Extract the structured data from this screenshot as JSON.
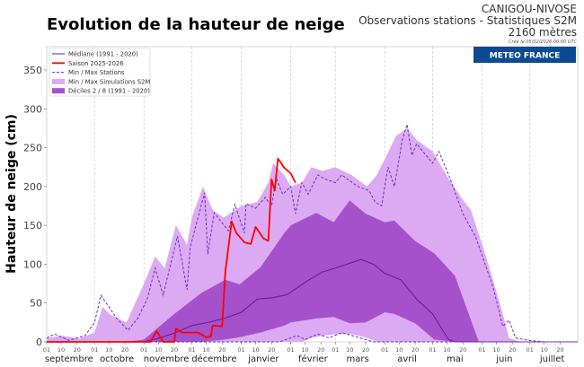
{
  "header": {
    "title": "Evolution de la hauteur de neige",
    "station": "CANIGOU-NIVOSE",
    "subtitle": "Observations stations - Statistiques S2M",
    "altitude": "2160 mètres",
    "created": "Créé le 05/02/2026 00:00 UTC",
    "logo_text": "METEO FRANCE"
  },
  "chart_data": {
    "type": "area",
    "title": "Evolution de la hauteur de neige",
    "ylabel": "Hauteur de neige (cm)",
    "xlabel": "",
    "ylim": [
      0,
      380
    ],
    "xlim": [
      "2025-09-01",
      "2026-07-31"
    ],
    "yticks": [
      "0",
      "50",
      "100",
      "150",
      "200",
      "250",
      "300",
      "350"
    ],
    "day_ticks": [
      "01",
      "10",
      "20"
    ],
    "months": [
      "septembre",
      "octobre",
      "novembre",
      "décembre",
      "janvier",
      "février",
      "mars",
      "avril",
      "mai",
      "juin",
      "juillet"
    ],
    "grid": "vertical dashed at month starts",
    "legend_position": "top-left",
    "colors": {
      "median": "#6a1f92",
      "season": "#ff0000",
      "stations": "#6a2ec4",
      "sim_band": "#dcaaf2",
      "decile_band": "#a651cc",
      "logo_bg": "#0b4a91"
    },
    "legend": [
      {
        "key": "median",
        "label": "Médiane (1991 - 2020)",
        "style": "line"
      },
      {
        "key": "season",
        "label": "Saison 2025-2026",
        "style": "thick-line"
      },
      {
        "key": "stations",
        "label": "Min / Max Stations",
        "style": "dashed"
      },
      {
        "key": "sim_band",
        "label": "Min / Max Simulations S2M",
        "style": "fill"
      },
      {
        "key": "decile_band",
        "label": "Déciles 2 / 8  (1991 - 2020)",
        "style": "fill"
      }
    ],
    "sim_minmax": [
      [
        "2025-09-01",
        0,
        5
      ],
      [
        "2025-09-11",
        0,
        8
      ],
      [
        "2025-09-21",
        0,
        4
      ],
      [
        "2025-10-01",
        0,
        12
      ],
      [
        "2025-10-06",
        0,
        45
      ],
      [
        "2025-10-11",
        0,
        35
      ],
      [
        "2025-10-21",
        0,
        25
      ],
      [
        "2025-11-01",
        0,
        75
      ],
      [
        "2025-11-08",
        0,
        110
      ],
      [
        "2025-11-14",
        0,
        95
      ],
      [
        "2025-11-21",
        0,
        150
      ],
      [
        "2025-11-28",
        0,
        125
      ],
      [
        "2025-12-01",
        0,
        160
      ],
      [
        "2025-12-08",
        0,
        200
      ],
      [
        "2025-12-14",
        0,
        170
      ],
      [
        "2025-12-21",
        0,
        160
      ],
      [
        "2026-01-01",
        0,
        175
      ],
      [
        "2026-01-11",
        0,
        180
      ],
      [
        "2026-01-18",
        0,
        205
      ],
      [
        "2026-01-21",
        0,
        230
      ],
      [
        "2026-01-28",
        0,
        215
      ],
      [
        "2026-02-01",
        0,
        200
      ],
      [
        "2026-02-08",
        0,
        205
      ],
      [
        "2026-02-14",
        5,
        225
      ],
      [
        "2026-02-21",
        8,
        220
      ],
      [
        "2026-03-01",
        10,
        225
      ],
      [
        "2026-03-11",
        10,
        215
      ],
      [
        "2026-03-21",
        5,
        200
      ],
      [
        "2026-03-27",
        0,
        215
      ],
      [
        "2026-04-01",
        0,
        235
      ],
      [
        "2026-04-08",
        0,
        265
      ],
      [
        "2026-04-15",
        0,
        275
      ],
      [
        "2026-04-21",
        0,
        260
      ],
      [
        "2026-05-01",
        0,
        245
      ],
      [
        "2026-05-11",
        0,
        210
      ],
      [
        "2026-05-21",
        0,
        180
      ],
      [
        "2026-05-25",
        0,
        170
      ],
      [
        "2026-06-03",
        0,
        113
      ],
      [
        "2026-06-12",
        0,
        51
      ],
      [
        "2026-06-18",
        0,
        5
      ],
      [
        "2026-06-25",
        0,
        0
      ],
      [
        "2026-07-31",
        0,
        0
      ]
    ],
    "deciles_2_8": [
      [
        "2025-09-01",
        0,
        0
      ],
      [
        "2025-10-21",
        0,
        0
      ],
      [
        "2025-11-01",
        0,
        3
      ],
      [
        "2025-11-20",
        0,
        36
      ],
      [
        "2025-12-07",
        0,
        63
      ],
      [
        "2025-12-22",
        3,
        80
      ],
      [
        "2025-12-31",
        6,
        74
      ],
      [
        "2026-01-13",
        12,
        96
      ],
      [
        "2026-01-28",
        21,
        140
      ],
      [
        "2026-02-01",
        25,
        150
      ],
      [
        "2026-02-17",
        30,
        166
      ],
      [
        "2026-02-28",
        32,
        154
      ],
      [
        "2026-03-10",
        24,
        182
      ],
      [
        "2026-03-20",
        25,
        165
      ],
      [
        "2026-04-01",
        38,
        154
      ],
      [
        "2026-04-07",
        36,
        156
      ],
      [
        "2026-04-20",
        24,
        130
      ],
      [
        "2026-05-02",
        3,
        114
      ],
      [
        "2026-05-15",
        0,
        85
      ],
      [
        "2026-05-30",
        0,
        0
      ],
      [
        "2026-07-31",
        0,
        0
      ]
    ],
    "median": [
      [
        "2025-09-01",
        0
      ],
      [
        "2025-11-01",
        0
      ],
      [
        "2025-11-11",
        5
      ],
      [
        "2025-11-21",
        12
      ],
      [
        "2025-12-01",
        21
      ],
      [
        "2025-12-11",
        25
      ],
      [
        "2025-12-21",
        30
      ],
      [
        "2026-01-01",
        38
      ],
      [
        "2026-01-11",
        55
      ],
      [
        "2026-01-21",
        57
      ],
      [
        "2026-01-30",
        61
      ],
      [
        "2026-02-11",
        78
      ],
      [
        "2026-02-21",
        90
      ],
      [
        "2026-03-01",
        95
      ],
      [
        "2026-03-17",
        106
      ],
      [
        "2026-03-25",
        100
      ],
      [
        "2026-04-01",
        88
      ],
      [
        "2026-04-11",
        80
      ],
      [
        "2026-04-21",
        55
      ],
      [
        "2026-05-01",
        36
      ],
      [
        "2026-05-11",
        3
      ],
      [
        "2026-05-15",
        0
      ],
      [
        "2026-07-31",
        0
      ]
    ],
    "stations_max": [
      [
        "2025-09-01",
        5
      ],
      [
        "2025-09-06",
        10
      ],
      [
        "2025-09-15",
        2
      ],
      [
        "2025-09-25",
        8
      ],
      [
        "2025-10-01",
        25
      ],
      [
        "2025-10-05",
        60
      ],
      [
        "2025-10-10",
        45
      ],
      [
        "2025-10-15",
        30
      ],
      [
        "2025-10-22",
        15
      ],
      [
        "2025-10-28",
        30
      ],
      [
        "2025-11-03",
        55
      ],
      [
        "2025-11-08",
        95
      ],
      [
        "2025-11-13",
        60
      ],
      [
        "2025-11-22",
        136
      ],
      [
        "2025-11-28",
        67
      ],
      [
        "2025-11-30",
        122
      ],
      [
        "2025-12-09",
        192
      ],
      [
        "2025-12-11",
        113
      ],
      [
        "2025-12-15",
        166
      ],
      [
        "2025-12-24",
        143
      ],
      [
        "2025-12-28",
        177
      ],
      [
        "2026-01-03",
        140
      ],
      [
        "2026-01-04",
        178
      ],
      [
        "2026-01-10",
        172
      ],
      [
        "2026-01-16",
        186
      ],
      [
        "2026-01-20",
        175
      ],
      [
        "2026-01-23",
        210
      ],
      [
        "2026-01-27",
        190
      ],
      [
        "2026-02-01",
        200
      ],
      [
        "2026-02-04",
        165
      ],
      [
        "2026-02-08",
        205
      ],
      [
        "2026-02-12",
        190
      ],
      [
        "2026-02-18",
        215
      ],
      [
        "2026-02-22",
        210
      ],
      [
        "2026-03-01",
        205
      ],
      [
        "2026-03-05",
        215
      ],
      [
        "2026-03-15",
        200
      ],
      [
        "2026-03-22",
        195
      ],
      [
        "2026-03-26",
        180
      ],
      [
        "2026-03-30",
        175
      ],
      [
        "2026-04-03",
        225
      ],
      [
        "2026-04-07",
        200
      ],
      [
        "2026-04-12",
        260
      ],
      [
        "2026-04-15",
        280
      ],
      [
        "2026-04-18",
        240
      ],
      [
        "2026-04-21",
        255
      ],
      [
        "2026-04-27",
        240
      ],
      [
        "2026-05-01",
        230
      ],
      [
        "2026-05-05",
        245
      ],
      [
        "2026-05-12",
        210
      ],
      [
        "2026-05-20",
        165
      ],
      [
        "2026-05-28",
        135
      ],
      [
        "2026-06-08",
        70
      ],
      [
        "2026-06-14",
        20
      ],
      [
        "2026-06-18",
        28
      ],
      [
        "2026-06-22",
        5
      ],
      [
        "2026-06-30",
        2
      ],
      [
        "2026-07-10",
        0
      ],
      [
        "2026-07-31",
        0
      ]
    ],
    "stations_min": [
      [
        "2025-09-01",
        0
      ],
      [
        "2026-01-25",
        0
      ],
      [
        "2026-02-05",
        8
      ],
      [
        "2026-02-10",
        3
      ],
      [
        "2026-02-18",
        10
      ],
      [
        "2026-02-25",
        5
      ],
      [
        "2026-03-05",
        12
      ],
      [
        "2026-03-15",
        6
      ],
      [
        "2026-03-25",
        0
      ],
      [
        "2026-07-31",
        0
      ]
    ],
    "season_2025_2026": [
      [
        "2025-09-01",
        0
      ],
      [
        "2025-11-05",
        0
      ],
      [
        "2025-11-09",
        14
      ],
      [
        "2025-11-13",
        0
      ],
      [
        "2025-11-20",
        0
      ],
      [
        "2025-11-21",
        17
      ],
      [
        "2025-11-25",
        12
      ],
      [
        "2025-12-05",
        12
      ],
      [
        "2025-12-10",
        6
      ],
      [
        "2025-12-13",
        7
      ],
      [
        "2025-12-14",
        21
      ],
      [
        "2025-12-20",
        20
      ],
      [
        "2025-12-22",
        90
      ],
      [
        "2025-12-26",
        155
      ],
      [
        "2025-12-29",
        140
      ],
      [
        "2026-01-03",
        128
      ],
      [
        "2026-01-07",
        126
      ],
      [
        "2026-01-10",
        148
      ],
      [
        "2026-01-15",
        133
      ],
      [
        "2026-01-18",
        130
      ],
      [
        "2026-01-20",
        209
      ],
      [
        "2026-01-22",
        195
      ],
      [
        "2026-01-24",
        236
      ],
      [
        "2026-01-28",
        224
      ],
      [
        "2026-02-01",
        217
      ],
      [
        "2026-02-04",
        205
      ]
    ]
  }
}
